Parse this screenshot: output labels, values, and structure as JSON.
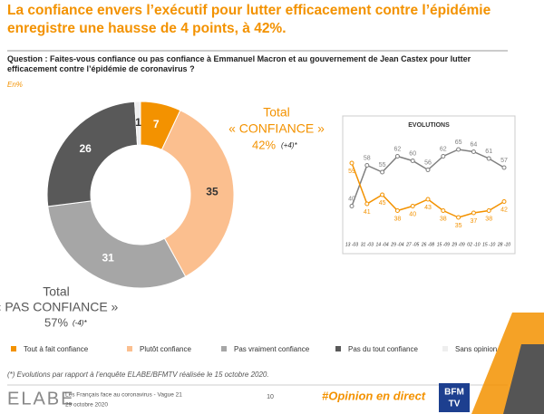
{
  "header": {
    "title": "La confiance envers l’exécutif pour lutter efficacement contre l’épidémie enregistre une hausse de 4 points, à 42%.",
    "question": "Question : Faites-vous confiance ou pas confiance à Emmanuel Macron et au gouvernement de Jean Castex pour lutter efficacement contre l’épidémie de coronavirus ?",
    "unit": "En%"
  },
  "chart_data": [
    {
      "type": "pie",
      "categories": [
        "Tout à fait confiance",
        "Plutôt confiance",
        "Pas vraiment confiance",
        "Pas du tout confiance",
        "Sans opinion"
      ],
      "values": [
        7,
        35,
        31,
        26,
        1
      ],
      "colors": [
        "#f39200",
        "#fbbf8f",
        "#a6a6a6",
        "#595959",
        "#eeeeee"
      ],
      "donut": true
    },
    {
      "type": "line",
      "title": "EVOLUTIONS",
      "categories": [
        "13 -03",
        "31 -03",
        "14 -04",
        "29 -04",
        "27 -05",
        "26 -08",
        "15 -09",
        "29 -09",
        "02 -10",
        "15 -10",
        "28 -10"
      ],
      "series": [
        {
          "color": "#7f7f7f",
          "values": [
            40,
            58,
            55,
            62,
            60,
            56,
            62,
            65,
            64,
            61,
            57
          ]
        },
        {
          "color": "#f39200",
          "values": [
            59,
            41,
            45,
            38,
            40,
            43,
            38,
            35,
            37,
            38,
            42
          ]
        }
      ]
    }
  ],
  "totals": {
    "confiance": {
      "label": "Total",
      "name": "« CONFIANCE »",
      "value": "42%",
      "change": "(+4)*"
    },
    "pas_confiance": {
      "label": "Total",
      "name": "« PAS CONFIANCE »",
      "value": "57%",
      "change": "(-4)*"
    }
  },
  "footnote": "(*) Evolutions par rapport à l’enquête ELABE/BFMTV réalisée le 15 octobre 2020.",
  "footer": {
    "brand": "ELABE",
    "study": "Les Français face au coronavirus - Vague 21",
    "date": "29 octobre 2020",
    "page": "10",
    "hashtag": "#Opinion en direct",
    "logo_top": "BFM",
    "logo_bottom": "TV"
  }
}
